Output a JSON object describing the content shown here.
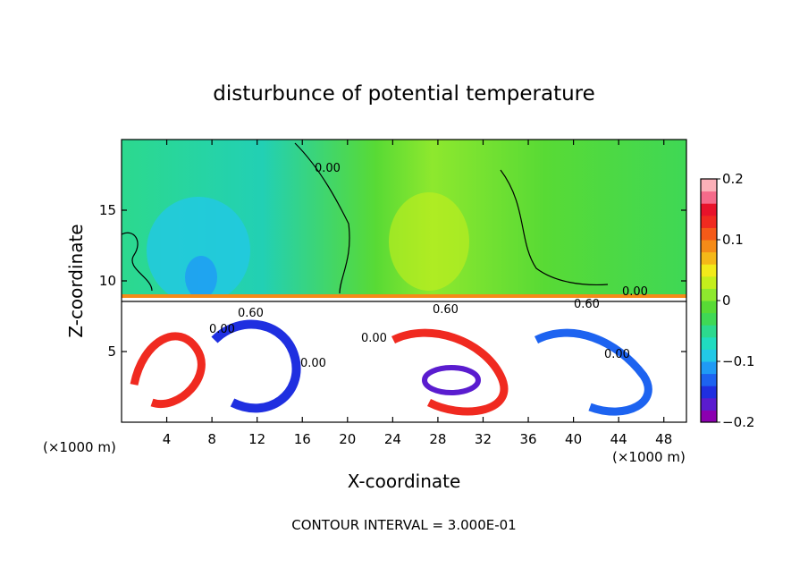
{
  "chart_data": {
    "type": "heatmap",
    "title": "disturbunce of potential temperature",
    "xlabel": "X-coordinate",
    "ylabel": "Z-coordinate",
    "x_unit": "(×1000 m)",
    "xlim": [
      0,
      50
    ],
    "ylim": [
      0,
      20
    ],
    "x_ticks": [
      4,
      8,
      12,
      16,
      20,
      24,
      28,
      32,
      36,
      40,
      44,
      48
    ],
    "y_ticks": [
      5,
      10,
      15
    ],
    "colorbar": {
      "min": -0.2,
      "max": 0.2,
      "tick_values": [
        0.2,
        0.1,
        0,
        -0.1,
        -0.2
      ],
      "tick_labels": [
        "0.2",
        "0.1",
        "0",
        "−0.1",
        "−0.2"
      ],
      "colors": [
        "#8b00b0",
        "#5a1ccf",
        "#1f2fe0",
        "#1d63f0",
        "#1f9af5",
        "#22c8e6",
        "#20dcc0",
        "#2cd98e",
        "#3fd855",
        "#58da35",
        "#8ee82e",
        "#c4ee1c",
        "#f2ea1a",
        "#f5b818",
        "#f58b18",
        "#f55a18",
        "#f02a20",
        "#e8122a",
        "#f56a8a",
        "#fbb0b8"
      ]
    },
    "contour_labels": [
      "0.00",
      "0.00",
      "0.00",
      "0.00",
      "0.00",
      "0.00",
      "0.60",
      "0.60",
      "0.60"
    ],
    "grid": false
  },
  "footer": {
    "contour_interval": "CONTOUR INTERVAL = 3.000E-01"
  }
}
